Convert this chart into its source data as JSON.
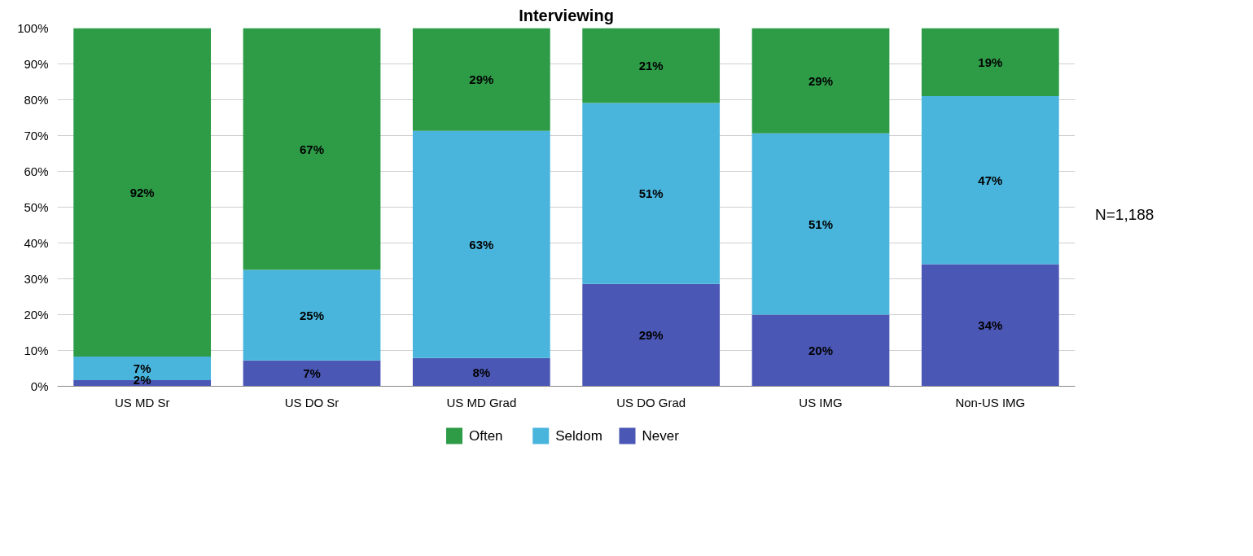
{
  "chart_data": {
    "type": "bar",
    "title": "Interviewing",
    "stacked": true,
    "categories": [
      "US MD Sr",
      "US DO Sr",
      "US MD Grad",
      "US DO Grad",
      "US IMG",
      "Non-US IMG"
    ],
    "series": [
      {
        "name": "Never",
        "color": "#4b57b5",
        "values": [
          1.7,
          7.2,
          7.9,
          28.6,
          20.0,
          34.1
        ],
        "value_labels": [
          "2%",
          "7%",
          "8%",
          "29%",
          "20%",
          "34%"
        ]
      },
      {
        "name": "Seldom",
        "color": "#49b5dd",
        "values": [
          6.6,
          25.3,
          63.4,
          50.5,
          50.6,
          46.9
        ],
        "value_labels": [
          "7%",
          "25%",
          "63%",
          "51%",
          "51%",
          "47%"
        ]
      },
      {
        "name": "Often",
        "color": "#2e9b47",
        "values": [
          91.7,
          67.5,
          28.7,
          20.9,
          29.4,
          19.0
        ],
        "value_labels": [
          "92%",
          "67%",
          "29%",
          "21%",
          "29%",
          "19%"
        ]
      }
    ],
    "ylim": [
      0,
      100
    ],
    "yticks": [
      {
        "value": 0,
        "label": "0%"
      },
      {
        "value": 10,
        "label": "10%"
      },
      {
        "value": 20,
        "label": "20%"
      },
      {
        "value": 30,
        "label": "30%"
      },
      {
        "value": 40,
        "label": "40%"
      },
      {
        "value": 50,
        "label": "50%"
      },
      {
        "value": 60,
        "label": "60%"
      },
      {
        "value": 70,
        "label": "70%"
      },
      {
        "value": 80,
        "label": "80%"
      },
      {
        "value": 90,
        "label": "90%"
      },
      {
        "value": 100,
        "label": "100%"
      }
    ],
    "grid": "y",
    "legend": "bottom",
    "annotations": [
      "N=1,188"
    ]
  }
}
